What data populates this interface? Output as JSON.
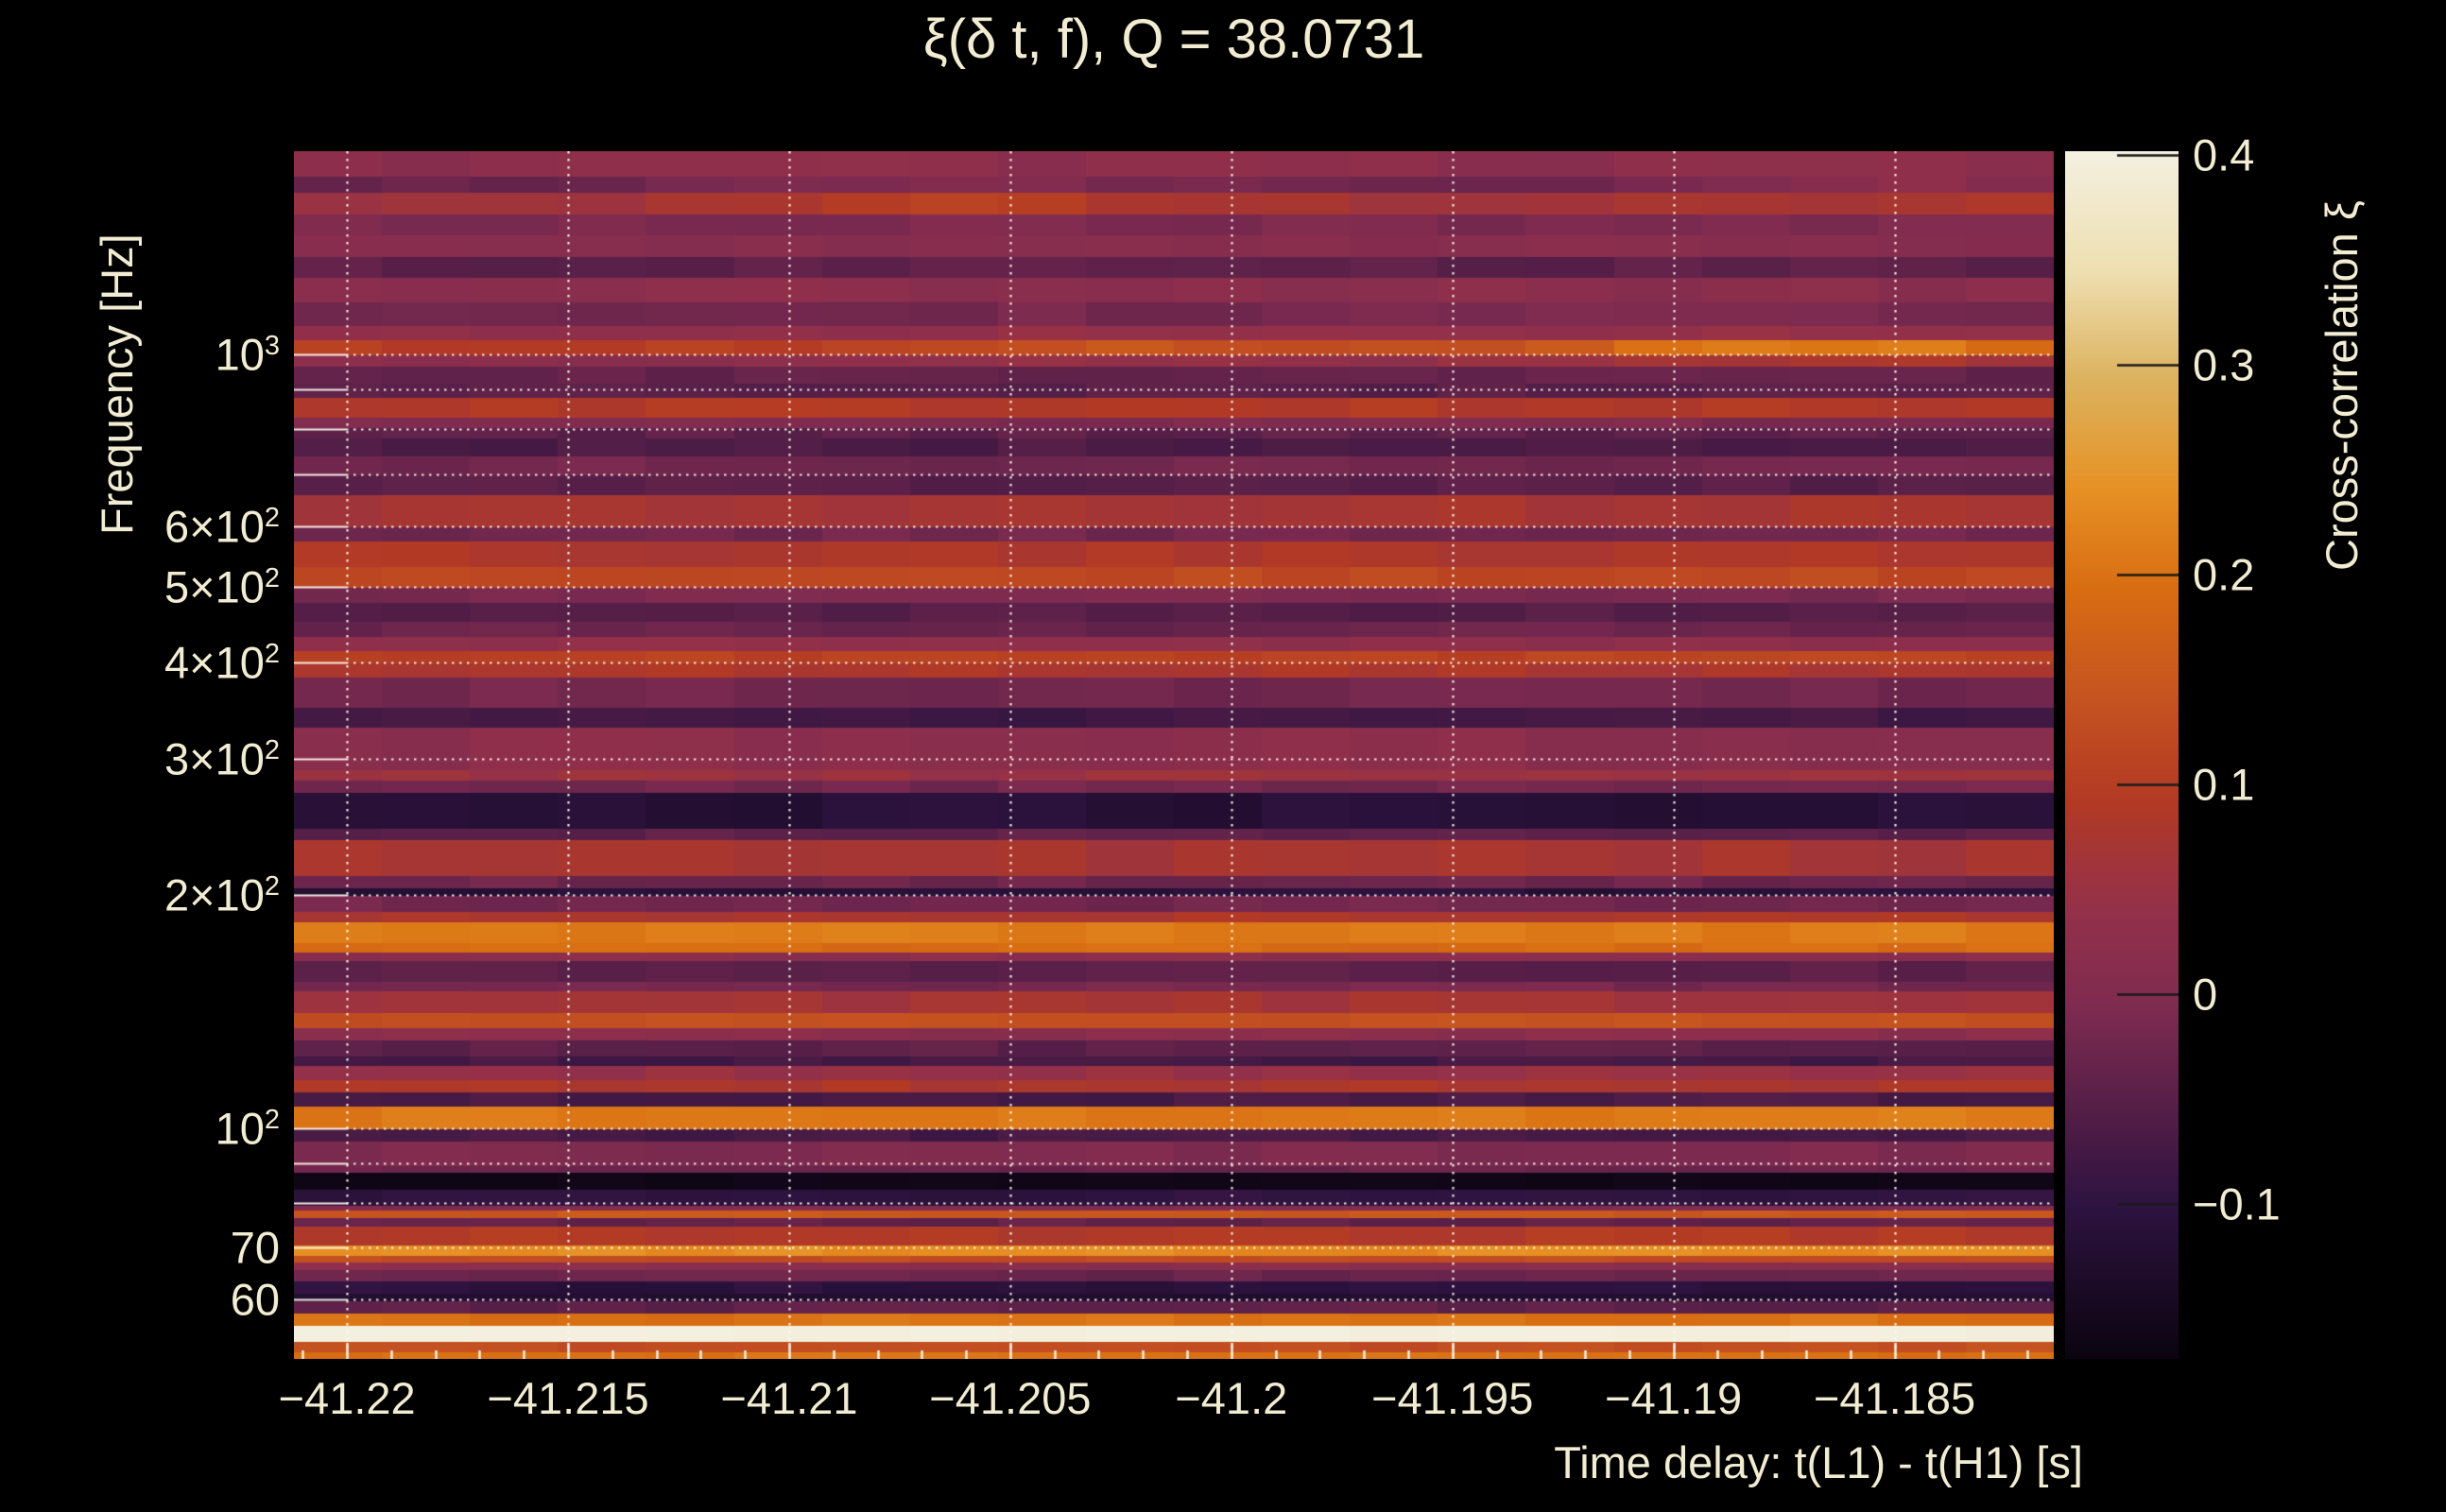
{
  "title": "ξ(δ t, f), Q = 38.0731",
  "colors": {
    "background": "#000000",
    "text": "#f2ecd2",
    "gridline": "#fff8e8",
    "colorbar_tick": "#1a1a1a"
  },
  "y_axis": {
    "label": "Frequency [Hz]",
    "scale": "log",
    "ticks": [
      {
        "value": 1000,
        "base": "10",
        "sup": "3"
      },
      {
        "value": 600,
        "base": "6×10",
        "sup": "2"
      },
      {
        "value": 500,
        "base": "5×10",
        "sup": "2"
      },
      {
        "value": 400,
        "base": "4×10",
        "sup": "2"
      },
      {
        "value": 300,
        "base": "3×10",
        "sup": "2"
      },
      {
        "value": 200,
        "base": "2×10",
        "sup": "2"
      },
      {
        "value": 100,
        "base": "10",
        "sup": "2"
      },
      {
        "value": 70,
        "base": "70",
        "sup": ""
      },
      {
        "value": 60,
        "base": "60",
        "sup": ""
      }
    ],
    "gridlines": [
      60,
      70,
      80,
      90,
      100,
      200,
      300,
      400,
      500,
      600,
      700,
      800,
      900,
      1000
    ]
  },
  "x_axis": {
    "label": "Time delay: t(L1) - t(H1) [s]",
    "ticks": [
      {
        "value": -41.22,
        "label": "−41.22"
      },
      {
        "value": -41.215,
        "label": "−41.215"
      },
      {
        "value": -41.21,
        "label": "−41.21"
      },
      {
        "value": -41.205,
        "label": "−41.205"
      },
      {
        "value": -41.2,
        "label": "−41.2"
      },
      {
        "value": -41.195,
        "label": "−41.195"
      },
      {
        "value": -41.19,
        "label": "−41.19"
      },
      {
        "value": -41.185,
        "label": "−41.185"
      }
    ],
    "minor_step": 0.001
  },
  "colorbar": {
    "label": "Cross-correlation ξ",
    "ticks": [
      {
        "value": 0.4,
        "label": "0.4"
      },
      {
        "value": 0.3,
        "label": "0.3"
      },
      {
        "value": 0.2,
        "label": "0.2"
      },
      {
        "value": 0.1,
        "label": "0.1"
      },
      {
        "value": 0,
        "label": "0"
      },
      {
        "value": -0.1,
        "label": "−0.1"
      }
    ]
  },
  "chart_data": {
    "type": "heatmap",
    "title": "ξ(δ t, f), Q = 38.0731",
    "xlabel": "Time delay: t(L1) - t(H1) [s]",
    "ylabel": "Frequency [Hz]",
    "zlabel": "Cross-correlation ξ",
    "xlim": [
      -41.2212,
      -41.1814
    ],
    "ylim": [
      50.3,
      1830
    ],
    "yscale": "log",
    "zlim": [
      -0.174,
      0.402
    ],
    "grid": true,
    "legend_position": "right-colorbar",
    "colormap": "inferno-like",
    "colormap_stops": [
      [
        0.0,
        "#0b0410"
      ],
      [
        0.128,
        "#2e1340"
      ],
      [
        0.292,
        "#7f2b50"
      ],
      [
        0.37,
        "#93304a"
      ],
      [
        0.463,
        "#b33a24"
      ],
      [
        0.55,
        "#c65420"
      ],
      [
        0.638,
        "#d86d12"
      ],
      [
        0.72,
        "#e69124"
      ],
      [
        0.812,
        "#dcb35f"
      ],
      [
        0.9,
        "#eedfb0"
      ],
      [
        1.0,
        "#f4f0e0"
      ]
    ],
    "bands_format": [
      "f_low_hz",
      "f_high_hz",
      "xi"
    ],
    "bands": [
      [
        50.3,
        51.5,
        0.2
      ],
      [
        51.5,
        53.0,
        0.13
      ],
      [
        53.0,
        55.6,
        0.4
      ],
      [
        55.6,
        57.8,
        0.2
      ],
      [
        57.8,
        59.8,
        -0.045
      ],
      [
        59.8,
        61.2,
        -0.125
      ],
      [
        61.2,
        63.5,
        -0.105
      ],
      [
        63.5,
        65.7,
        -0.03
      ],
      [
        65.7,
        67.2,
        0.02
      ],
      [
        67.2,
        68.6,
        0.13
      ],
      [
        68.6,
        70.6,
        0.235
      ],
      [
        70.6,
        74.7,
        0.09
      ],
      [
        74.7,
        76.6,
        -0.04
      ],
      [
        76.6,
        78.4,
        0.15
      ],
      [
        78.4,
        79.5,
        0.0
      ],
      [
        79.5,
        83.5,
        -0.1
      ],
      [
        83.5,
        87.8,
        -0.163
      ],
      [
        87.8,
        89.6,
        -0.03
      ],
      [
        89.6,
        96.4,
        -0.005
      ],
      [
        96.4,
        100.0,
        -0.073
      ],
      [
        100.0,
        107.0,
        0.21
      ],
      [
        107.0,
        111.5,
        -0.068
      ],
      [
        111.5,
        115.5,
        0.08
      ],
      [
        115.5,
        120.5,
        0.045
      ],
      [
        120.5,
        124.0,
        -0.075
      ],
      [
        124.0,
        130.0,
        -0.045
      ],
      [
        130.0,
        135.0,
        0.02
      ],
      [
        135.0,
        141.0,
        0.135
      ],
      [
        141.0,
        150.5,
        0.065
      ],
      [
        150.5,
        155.0,
        -0.015
      ],
      [
        155.0,
        165.0,
        -0.05
      ],
      [
        165.0,
        169.0,
        0.02
      ],
      [
        169.0,
        174.0,
        0.19
      ],
      [
        174.0,
        185.0,
        0.21
      ],
      [
        185.0,
        190.5,
        0.08
      ],
      [
        190.5,
        200.0,
        -0.02
      ],
      [
        200.0,
        204.5,
        -0.11
      ],
      [
        204.5,
        212.0,
        -0.025
      ],
      [
        212.0,
        236.0,
        0.07
      ],
      [
        236.0,
        244.0,
        -0.045
      ],
      [
        244.0,
        272.0,
        -0.115
      ],
      [
        272.0,
        282.0,
        -0.02
      ],
      [
        282.0,
        291.0,
        0.05
      ],
      [
        291.0,
        330.0,
        0.02
      ],
      [
        330.0,
        350.0,
        -0.08
      ],
      [
        350.0,
        383.0,
        -0.02
      ],
      [
        383.0,
        400.0,
        0.08
      ],
      [
        400.0,
        414.0,
        0.11
      ],
      [
        414.0,
        433.0,
        0.03
      ],
      [
        433.0,
        452.0,
        -0.03
      ],
      [
        452.0,
        479.0,
        -0.055
      ],
      [
        479.0,
        500.0,
        -0.01
      ],
      [
        500.0,
        532.0,
        0.12
      ],
      [
        532.0,
        575.0,
        0.08
      ],
      [
        575.0,
        600.0,
        -0.02
      ],
      [
        600.0,
        660.0,
        0.07
      ],
      [
        660.0,
        700.0,
        -0.05
      ],
      [
        700.0,
        740.0,
        -0.02
      ],
      [
        740.0,
        780.0,
        -0.065
      ],
      [
        780.0,
        805.0,
        -0.045
      ],
      [
        805.0,
        830.0,
        -0.005
      ],
      [
        830.0,
        880.0,
        0.09
      ],
      [
        880.0,
        920.0,
        -0.05
      ],
      [
        920.0,
        967.0,
        -0.04
      ],
      [
        967.0,
        1000.0,
        0.02
      ],
      [
        1000.0,
        1045.0,
        0.1
      ],
      [
        1045.0,
        1090.0,
        0.03
      ],
      [
        1090.0,
        1170.0,
        -0.015
      ],
      [
        1170.0,
        1260.0,
        0.02
      ],
      [
        1260.0,
        1340.0,
        -0.045
      ],
      [
        1340.0,
        1430.0,
        0.01
      ],
      [
        1430.0,
        1520.0,
        -0.01
      ],
      [
        1520.0,
        1620.0,
        0.06
      ],
      [
        1620.0,
        1700.0,
        -0.03
      ],
      [
        1700.0,
        1830.0,
        0.02
      ]
    ],
    "highlights_format": [
      "t_center_s",
      "f_center_hz",
      "delta_xi",
      "sigma_t_s",
      "sigma_logf"
    ],
    "highlights": [
      [
        -41.2063,
        1600,
        0.05,
        0.005,
        0.028
      ],
      [
        -41.1865,
        1015,
        0.12,
        0.0075,
        0.016
      ],
      [
        -41.2023,
        1015,
        0.045,
        0.005,
        0.016
      ],
      [
        -41.1842,
        1650,
        0.055,
        0.0045,
        0.022
      ]
    ],
    "noise_amp": 0.011
  }
}
